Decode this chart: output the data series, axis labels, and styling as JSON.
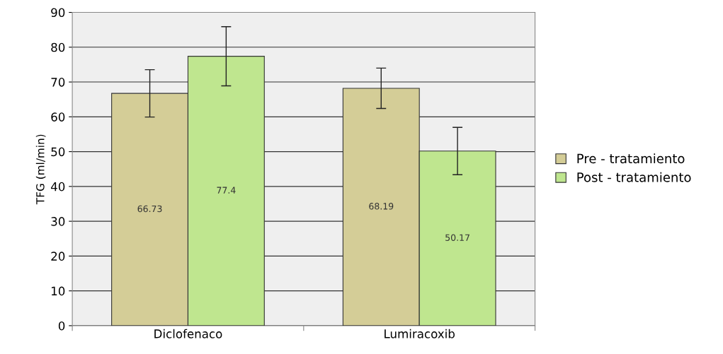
{
  "chart_data": {
    "type": "bar",
    "ylabel": "TFG (ml/min)",
    "categories": [
      "Diclofenaco",
      "Lumiracoxib"
    ],
    "series": [
      {
        "name": "Pre - tratamiento",
        "color": "#d4cd97",
        "values": [
          66.73,
          68.19
        ],
        "errors": [
          6.8,
          5.8
        ]
      },
      {
        "name": "Post - tratamiento",
        "color": "#bfe68f",
        "values": [
          77.4,
          50.17
        ],
        "errors": [
          8.5,
          6.8
        ]
      }
    ],
    "ylim": [
      0,
      90
    ],
    "yticks": [
      0,
      10,
      20,
      30,
      40,
      50,
      60,
      70,
      80,
      90
    ],
    "grid": "y",
    "legend": "right",
    "data_labels": true
  }
}
